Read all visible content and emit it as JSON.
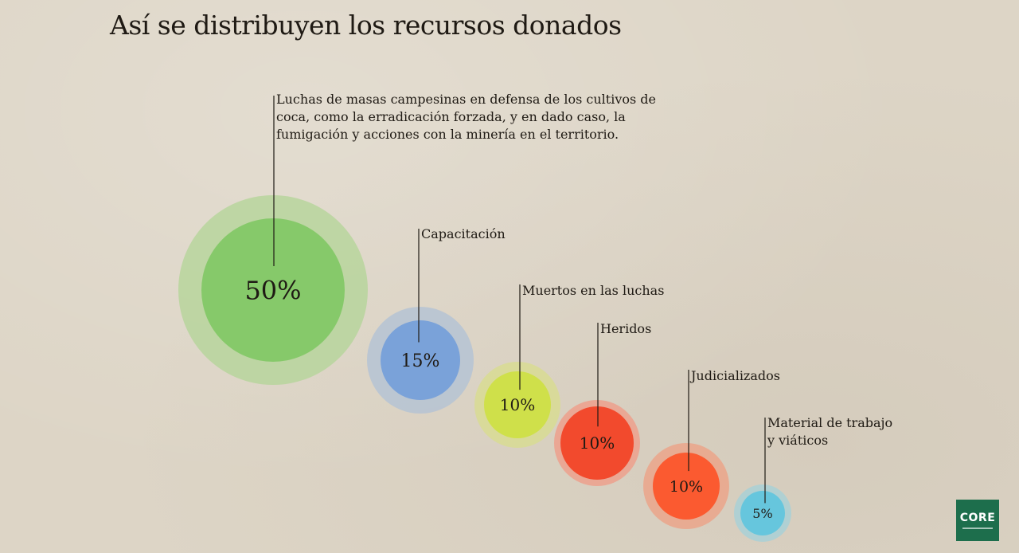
{
  "title": "Así se distribuyen los recursos donados",
  "logo": {
    "text": "CORE"
  },
  "chart_data": {
    "type": "bubble",
    "title": "Así se distribuyen los recursos donados",
    "items": [
      {
        "label": "Luchas de masas campesinas en defensa de los cultivos de coca, como la erradicación forzada, y en dado caso, la fumigación y acciones con la minería en el territorio.",
        "value": 50,
        "value_label": "50%",
        "color": "#86c96a",
        "halo": "#b7d59c"
      },
      {
        "label": "Capacitación",
        "value": 15,
        "value_label": "15%",
        "color": "#7aa2d9",
        "halo": "#b5c3d3"
      },
      {
        "label": "Muertos en las luchas",
        "value": 10,
        "value_label": "10%",
        "color": "#cfe04a",
        "halo": "#d8dc93"
      },
      {
        "label": "Heridos",
        "value": 10,
        "value_label": "10%",
        "color": "#f24a2d",
        "halo": "#eda08c"
      },
      {
        "label": "Judicializados",
        "value": 10,
        "value_label": "10%",
        "color": "#fb5a30",
        "halo": "#eba58a"
      },
      {
        "label": "Material de trabajo y viáticos",
        "value": 5,
        "value_label": "5%",
        "color": "#66c6dd",
        "halo": "#a9d0d6"
      }
    ]
  }
}
